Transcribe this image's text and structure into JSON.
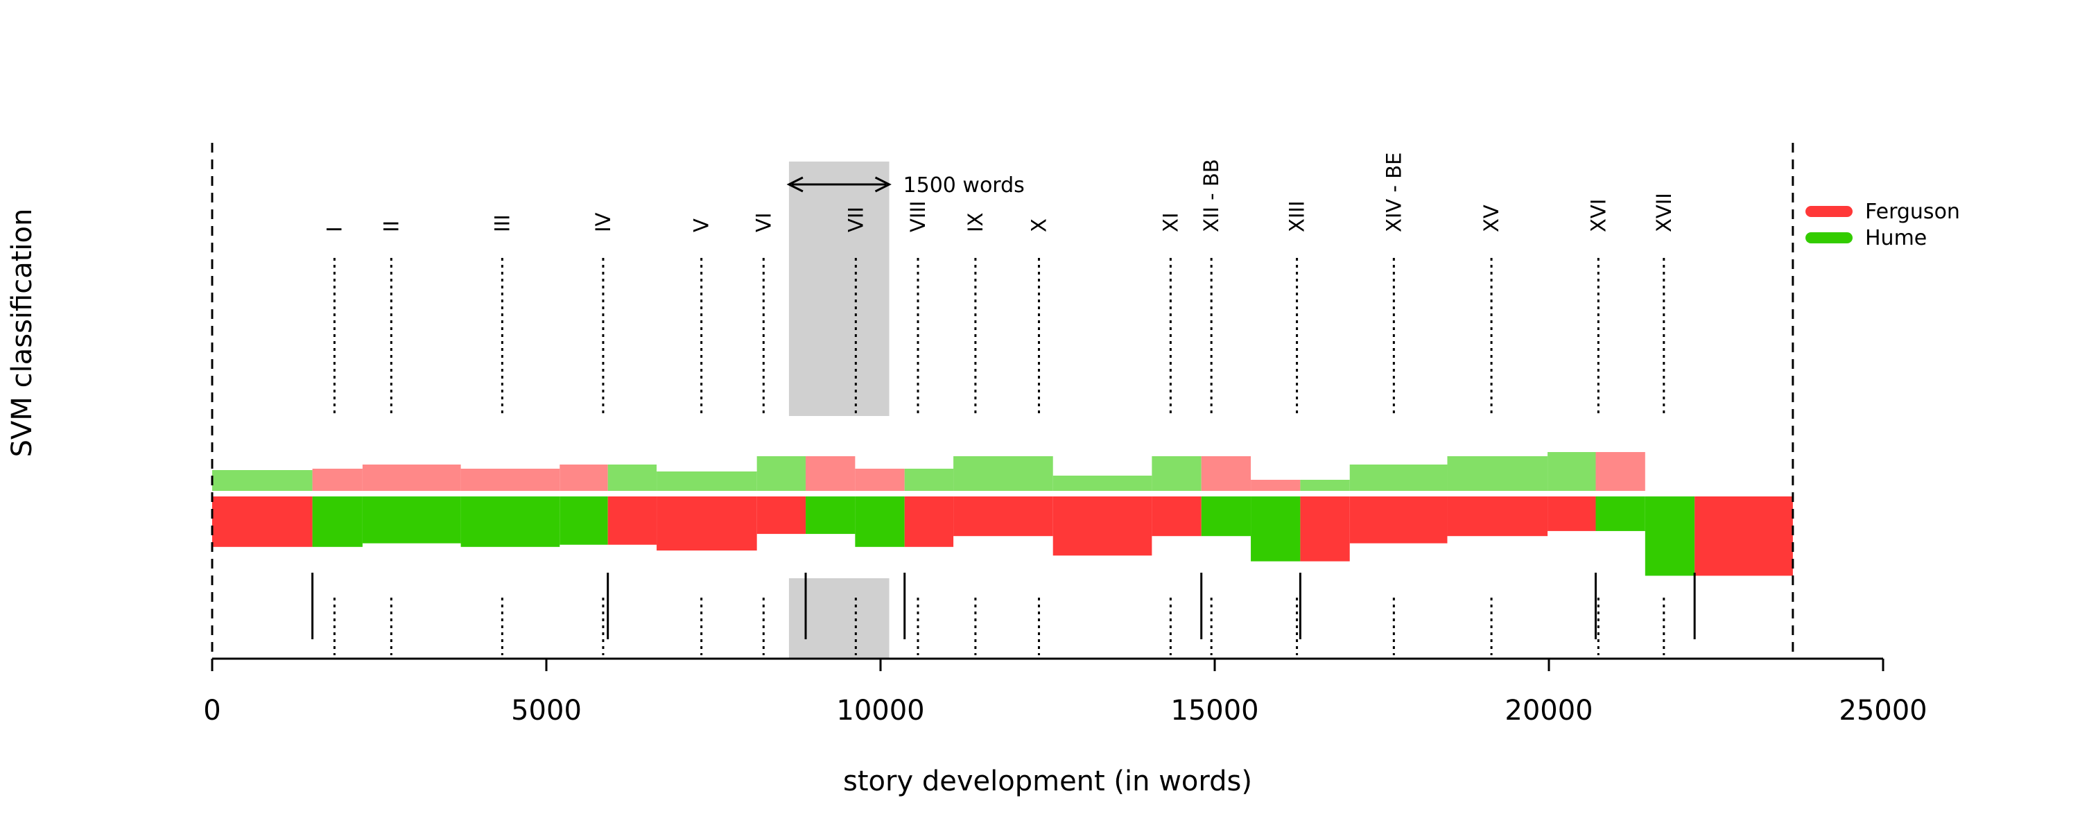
{
  "chart_data": {
    "type": "timeline-bar",
    "title": "",
    "xlabel": "story development (in words)",
    "ylabel": "SVM classification",
    "xlim": [
      0,
      25000
    ],
    "xticks": [
      0,
      5000,
      10000,
      15000,
      20000,
      25000
    ],
    "xtick_labels": [
      "0",
      "5000",
      "10000",
      "15000",
      "20000",
      "25000"
    ],
    "text_start": 0,
    "text_end": 23650,
    "legend_position": "top-right",
    "legend": [
      {
        "name": "Ferguson",
        "color": "#ff3838"
      },
      {
        "name": "Hume",
        "color": "#33cc00"
      }
    ],
    "window_annotation": {
      "label": "1500 words",
      "start": 8630,
      "end": 10130
    },
    "chapters": [
      {
        "label": "I",
        "x": 1830
      },
      {
        "label": "II",
        "x": 2680
      },
      {
        "label": "III",
        "x": 4340
      },
      {
        "label": "IV",
        "x": 5850
      },
      {
        "label": "V",
        "x": 7320
      },
      {
        "label": "VI",
        "x": 8250
      },
      {
        "label": "VII",
        "x": 9630
      },
      {
        "label": "VIII",
        "x": 10560
      },
      {
        "label": "IX",
        "x": 11420
      },
      {
        "label": "X",
        "x": 12370
      },
      {
        "label": "XI",
        "x": 14340
      },
      {
        "label": "XII - BB",
        "x": 14950
      },
      {
        "label": "XIII",
        "x": 16230
      },
      {
        "label": "XIV - BE",
        "x": 17680
      },
      {
        "label": "XV",
        "x": 19140
      },
      {
        "label": "XVI",
        "x": 20740
      },
      {
        "label": "XVII",
        "x": 21720
      }
    ],
    "upper_windows": [
      {
        "start": 0,
        "end": 1500,
        "class": "Hume",
        "height": 0.3
      },
      {
        "start": 1500,
        "end": 2250,
        "class": "Ferguson",
        "height": 0.32
      },
      {
        "start": 2250,
        "end": 3720,
        "class": "Ferguson",
        "height": 0.38
      },
      {
        "start": 3720,
        "end": 5200,
        "class": "Ferguson",
        "height": 0.32
      },
      {
        "start": 5200,
        "end": 5920,
        "class": "Ferguson",
        "height": 0.38
      },
      {
        "start": 5920,
        "end": 6650,
        "class": "Hume",
        "height": 0.38
      },
      {
        "start": 6650,
        "end": 8150,
        "class": "Hume",
        "height": 0.28
      },
      {
        "start": 8150,
        "end": 8880,
        "class": "Hume",
        "height": 0.5
      },
      {
        "start": 8880,
        "end": 9620,
        "class": "Ferguson",
        "height": 0.5
      },
      {
        "start": 9620,
        "end": 10360,
        "class": "Ferguson",
        "height": 0.32
      },
      {
        "start": 10360,
        "end": 11090,
        "class": "Hume",
        "height": 0.32
      },
      {
        "start": 11090,
        "end": 12580,
        "class": "Hume",
        "height": 0.5
      },
      {
        "start": 12580,
        "end": 14060,
        "class": "Hume",
        "height": 0.22
      },
      {
        "start": 14060,
        "end": 14800,
        "class": "Hume",
        "height": 0.5
      },
      {
        "start": 14800,
        "end": 15540,
        "class": "Ferguson",
        "height": 0.5
      },
      {
        "start": 15540,
        "end": 16280,
        "class": "Ferguson",
        "height": 0.16
      },
      {
        "start": 16280,
        "end": 17020,
        "class": "Hume",
        "height": 0.16
      },
      {
        "start": 17020,
        "end": 18480,
        "class": "Hume",
        "height": 0.38
      },
      {
        "start": 18480,
        "end": 19980,
        "class": "Hume",
        "height": 0.5
      },
      {
        "start": 19980,
        "end": 20700,
        "class": "Hume",
        "height": 0.56
      },
      {
        "start": 20700,
        "end": 21440,
        "class": "Ferguson",
        "height": 0.56
      }
    ],
    "lower_segments": [
      {
        "start": 0,
        "end": 1500,
        "class": "Ferguson"
      },
      {
        "start": 1500,
        "end": 5920,
        "class": "Hume"
      },
      {
        "start": 5920,
        "end": 8880,
        "class": "Ferguson"
      },
      {
        "start": 8880,
        "end": 10360,
        "class": "Hume"
      },
      {
        "start": 10360,
        "end": 14800,
        "class": "Ferguson"
      },
      {
        "start": 14800,
        "end": 16280,
        "class": "Hume"
      },
      {
        "start": 16280,
        "end": 20700,
        "class": "Ferguson"
      },
      {
        "start": 20700,
        "end": 22180,
        "class": "Hume"
      },
      {
        "start": 22180,
        "end": 23650,
        "class": "Ferguson"
      }
    ],
    "lower_profile": [
      {
        "start": 0,
        "end": 1500,
        "extent": 0.0
      },
      {
        "start": 1500,
        "end": 2250,
        "extent": 0.0
      },
      {
        "start": 2250,
        "end": 3720,
        "extent": 0.12
      },
      {
        "start": 3720,
        "end": 5200,
        "extent": 0.0
      },
      {
        "start": 5200,
        "end": 5920,
        "extent": 0.05
      },
      {
        "start": 5920,
        "end": 6650,
        "extent": 0.12
      },
      {
        "start": 6650,
        "end": 8150,
        "extent": 0.0
      },
      {
        "start": 8150,
        "end": 8880,
        "extent": 0.28
      },
      {
        "start": 8880,
        "end": 9620,
        "extent": 0.28
      },
      {
        "start": 9620,
        "end": 10360,
        "extent": 0.0
      },
      {
        "start": 10360,
        "end": 11090,
        "extent": 0.0
      },
      {
        "start": 11090,
        "end": 12580,
        "extent": 0.28
      },
      {
        "start": 12580,
        "end": 14060,
        "extent": 0.0
      },
      {
        "start": 14060,
        "end": 14800,
        "extent": 0.28
      },
      {
        "start": 14800,
        "end": 15540,
        "extent": 0.28
      },
      {
        "start": 15540,
        "end": 16280,
        "extent": 0.0
      },
      {
        "start": 16280,
        "end": 17020,
        "extent": 0.0
      },
      {
        "start": 17020,
        "end": 18480,
        "extent": 0.12
      },
      {
        "start": 18480,
        "end": 19980,
        "extent": 0.28
      },
      {
        "start": 19980,
        "end": 20700,
        "extent": 0.42
      },
      {
        "start": 20700,
        "end": 21440,
        "extent": 0.42
      },
      {
        "start": 21440,
        "end": 22180,
        "extent": 0.0
      },
      {
        "start": 22180,
        "end": 23650,
        "extent": 1.0
      }
    ],
    "lower_depth": [
      {
        "start": 0,
        "end": 1500,
        "depth": 0.0
      },
      {
        "start": 1500,
        "end": 2250,
        "depth": 0.0
      },
      {
        "start": 2250,
        "end": 3720,
        "depth": -0.05
      },
      {
        "start": 3720,
        "end": 5200,
        "depth": 0.0
      },
      {
        "start": 5200,
        "end": 5920,
        "depth": -0.03
      },
      {
        "start": 5920,
        "end": 6650,
        "depth": -0.03
      },
      {
        "start": 6650,
        "end": 8150,
        "depth": 0.05
      },
      {
        "start": 8150,
        "end": 8880,
        "depth": -0.18
      },
      {
        "start": 8880,
        "end": 9620,
        "depth": -0.18
      },
      {
        "start": 9620,
        "end": 10360,
        "depth": 0.0
      },
      {
        "start": 10360,
        "end": 11090,
        "depth": 0.0
      },
      {
        "start": 11090,
        "end": 12580,
        "depth": -0.15
      },
      {
        "start": 12580,
        "end": 14060,
        "depth": 0.12
      },
      {
        "start": 14060,
        "end": 14800,
        "depth": -0.15
      },
      {
        "start": 14800,
        "end": 15540,
        "depth": -0.15
      },
      {
        "start": 15540,
        "end": 16280,
        "depth": 0.2
      },
      {
        "start": 16280,
        "end": 17020,
        "depth": 0.2
      },
      {
        "start": 17020,
        "end": 18480,
        "depth": -0.05
      },
      {
        "start": 18480,
        "end": 19980,
        "depth": -0.15
      },
      {
        "start": 19980,
        "end": 20700,
        "depth": -0.22
      },
      {
        "start": 20700,
        "end": 21440,
        "depth": -0.22
      },
      {
        "start": 21440,
        "end": 22180,
        "depth": 0.4
      },
      {
        "start": 22180,
        "end": 23650,
        "depth": 0.4
      }
    ],
    "change_points": [
      1500,
      5920,
      8880,
      10360,
      14800,
      16280,
      20700,
      22180
    ]
  },
  "colors": {
    "ferguson": "#ff3838",
    "hume": "#33cc00",
    "ferguson_light": "#ff8888",
    "hume_light": "#83e066",
    "window_shade": "#d0d0d0"
  }
}
